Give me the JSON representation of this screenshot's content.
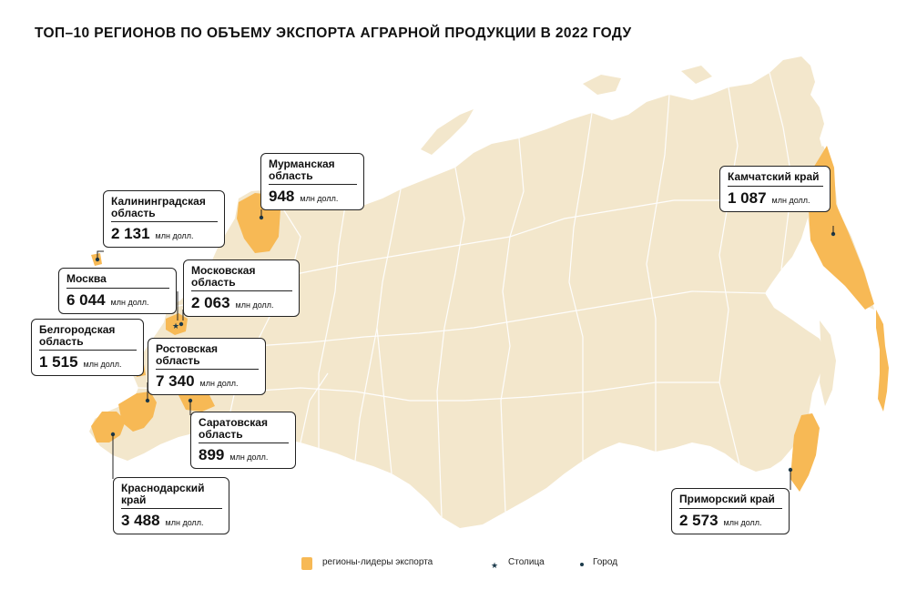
{
  "title": "ТОП–10 РЕГИОНОВ ПО ОБЪЕМУ ЭКСПОРТА АГРАРНОЙ ПРОДУКЦИИ В 2022 ГОДУ",
  "colors": {
    "land": "#F3E7CC",
    "highlight": "#F7B955",
    "border": "#FFFFFF",
    "text": "#111111",
    "marker": "#1B3A4B"
  },
  "regions": [
    {
      "id": "kaliningrad",
      "name": "Калининградская область",
      "value": "2 131",
      "unit": "млн долл."
    },
    {
      "id": "murmansk",
      "name": "Мурманская область",
      "value": "948",
      "unit": "млн долл."
    },
    {
      "id": "moscow-city",
      "name": "Москва",
      "value": "6 044",
      "unit": "млн долл."
    },
    {
      "id": "moscow-oblast",
      "name": "Московская область",
      "value": "2 063",
      "unit": "млн долл."
    },
    {
      "id": "belgorod",
      "name": "Белгородская область",
      "value": "1 515",
      "unit": "млн долл."
    },
    {
      "id": "rostov",
      "name": "Ростовская область",
      "value": "7 340",
      "unit": "млн долл."
    },
    {
      "id": "saratov",
      "name": "Саратовская область",
      "value": "899",
      "unit": "млн долл."
    },
    {
      "id": "krasnodar",
      "name": "Краснодарский край",
      "value": "3 488",
      "unit": "млн долл."
    },
    {
      "id": "kamchatka",
      "name": "Камчатский край",
      "value": "1 087",
      "unit": "млн долл."
    },
    {
      "id": "primorsky",
      "name": "Приморский край",
      "value": "2 573",
      "unit": "млн долл."
    }
  ],
  "legend": {
    "leaders": "регионы-лидеры экспорта",
    "capital": "Столица",
    "city": "Город"
  }
}
